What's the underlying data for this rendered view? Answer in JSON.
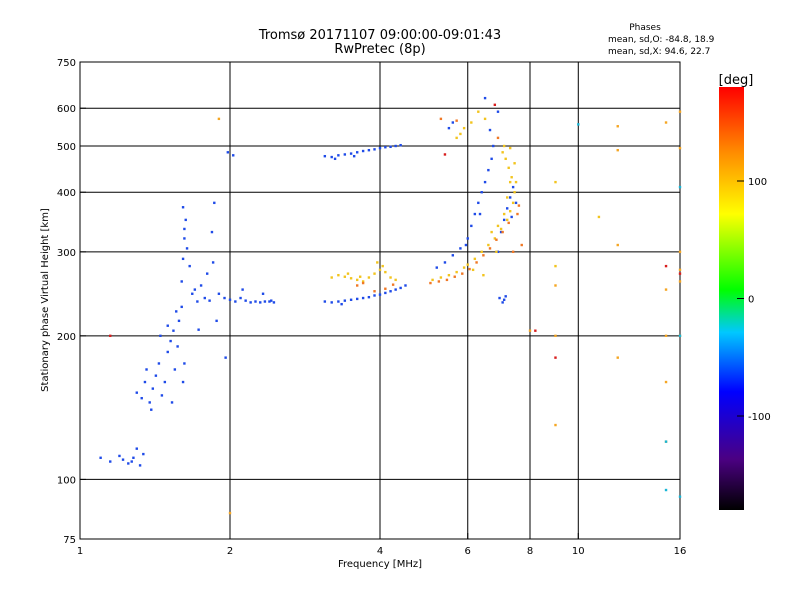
{
  "chart_data": {
    "type": "scatter",
    "title": "Tromsø 20171107 09:00:00-09:01:43",
    "subtitle": "RwPretec (8p)",
    "stats": {
      "heading": "Phases",
      "line_o": "mean, sd,O: -84.8, 18.9",
      "line_x": "mean, sd,X:  94.6, 22.7"
    },
    "xlabel": "Frequency [MHz]",
    "ylabel": "Stationary phase Virtual Height [km]",
    "x_scale": "log",
    "y_scale": "log",
    "xlim": [
      1,
      16
    ],
    "ylim": [
      75,
      750
    ],
    "x_ticks": [
      1,
      2,
      4,
      6,
      8,
      10,
      16
    ],
    "x_tick_labels": [
      "1",
      "2",
      "4",
      "6",
      "8",
      "10",
      "16"
    ],
    "y_ticks": [
      75,
      100,
      200,
      300,
      400,
      500,
      600,
      750
    ],
    "y_tick_labels": [
      "75",
      "100",
      "200",
      "300",
      "400",
      "500",
      "600",
      "750"
    ],
    "x_grid": [
      2,
      4,
      6,
      8,
      10
    ],
    "y_grid": [
      100,
      200,
      300,
      400,
      500,
      600
    ],
    "colorbar": {
      "label": "[deg]",
      "range": [
        -180,
        180
      ],
      "ticks": [
        100,
        0,
        -100
      ],
      "tick_labels": [
        "100",
        "0",
        "-100"
      ]
    },
    "series": [
      {
        "points": [
          [
            1.2,
            112
          ],
          [
            1.22,
            110
          ],
          [
            1.25,
            108
          ],
          [
            1.28,
            111
          ],
          [
            1.3,
            116
          ],
          [
            1.27,
            109
          ],
          [
            1.32,
            107
          ],
          [
            1.34,
            113
          ],
          [
            1.3,
            152
          ],
          [
            1.33,
            148
          ],
          [
            1.35,
            160
          ],
          [
            1.36,
            170
          ],
          [
            1.38,
            145
          ],
          [
            1.4,
            155
          ],
          [
            1.42,
            165
          ],
          [
            1.44,
            175
          ],
          [
            1.46,
            150
          ],
          [
            1.48,
            160
          ],
          [
            1.5,
            185
          ],
          [
            1.52,
            195
          ],
          [
            1.54,
            205
          ],
          [
            1.55,
            170
          ],
          [
            1.57,
            190
          ],
          [
            1.58,
            215
          ],
          [
            1.6,
            230
          ],
          [
            1.62,
            175
          ],
          [
            1.45,
            200
          ],
          [
            1.5,
            210
          ],
          [
            1.56,
            225
          ],
          [
            1.61,
            160
          ],
          [
            1.39,
            140
          ],
          [
            1.53,
            145
          ],
          [
            1.6,
            260
          ],
          [
            1.61,
            290
          ],
          [
            1.62,
            320
          ],
          [
            1.63,
            350
          ],
          [
            1.61,
            372
          ],
          [
            1.62,
            335
          ],
          [
            1.64,
            305
          ],
          [
            1.66,
            280
          ],
          [
            1.7,
            250
          ],
          [
            1.75,
            255
          ],
          [
            1.8,
            270
          ],
          [
            1.85,
            285
          ],
          [
            1.84,
            330
          ],
          [
            1.86,
            380
          ],
          [
            1.68,
            245
          ],
          [
            1.78,
            240
          ],
          [
            1.9,
            245
          ],
          [
            1.95,
            240
          ],
          [
            2.0,
            238
          ],
          [
            2.05,
            236
          ],
          [
            2.1,
            240
          ],
          [
            2.15,
            237
          ],
          [
            2.2,
            235
          ],
          [
            2.25,
            236
          ],
          [
            2.3,
            235
          ],
          [
            2.35,
            236
          ],
          [
            2.4,
            236
          ],
          [
            2.45,
            235
          ],
          [
            1.72,
            236
          ],
          [
            1.82,
            237
          ],
          [
            2.12,
            250
          ],
          [
            2.33,
            245
          ],
          [
            1.98,
            485
          ],
          [
            2.03,
            478
          ],
          [
            1.88,
            215
          ],
          [
            1.96,
            180
          ],
          [
            2.42,
            237
          ],
          [
            1.1,
            111
          ],
          [
            1.15,
            109
          ],
          [
            1.73,
            206
          ],
          [
            3.1,
            236
          ],
          [
            3.2,
            235
          ],
          [
            3.3,
            236
          ],
          [
            3.4,
            237
          ],
          [
            3.5,
            238
          ],
          [
            3.6,
            239
          ],
          [
            3.7,
            240
          ],
          [
            3.8,
            241
          ],
          [
            3.9,
            243
          ],
          [
            4.0,
            244
          ],
          [
            4.1,
            246
          ],
          [
            4.2,
            248
          ],
          [
            4.3,
            250
          ],
          [
            4.4,
            252
          ],
          [
            4.5,
            255
          ],
          [
            3.35,
            233
          ],
          [
            3.1,
            476
          ],
          [
            3.2,
            474
          ],
          [
            3.3,
            478
          ],
          [
            3.4,
            480
          ],
          [
            3.5,
            482
          ],
          [
            3.6,
            485
          ],
          [
            3.7,
            488
          ],
          [
            3.8,
            490
          ],
          [
            3.9,
            492
          ],
          [
            4.0,
            495
          ],
          [
            4.1,
            497
          ],
          [
            4.2,
            498
          ],
          [
            4.3,
            500
          ],
          [
            4.4,
            502
          ],
          [
            3.25,
            470
          ],
          [
            3.55,
            476
          ],
          [
            5.2,
            278
          ],
          [
            5.4,
            285
          ],
          [
            5.6,
            295
          ],
          [
            5.8,
            305
          ],
          [
            6.0,
            320
          ],
          [
            6.1,
            340
          ],
          [
            6.2,
            360
          ],
          [
            6.3,
            380
          ],
          [
            6.4,
            400
          ],
          [
            6.5,
            420
          ],
          [
            6.6,
            445
          ],
          [
            6.7,
            470
          ],
          [
            6.75,
            500
          ],
          [
            6.65,
            540
          ],
          [
            5.95,
            310
          ],
          [
            6.35,
            360
          ],
          [
            6.9,
            300
          ],
          [
            7.0,
            330
          ],
          [
            7.1,
            350
          ],
          [
            7.2,
            370
          ],
          [
            7.3,
            390
          ],
          [
            7.4,
            410
          ],
          [
            7.5,
            380
          ],
          [
            7.35,
            355
          ],
          [
            6.5,
            630
          ],
          [
            6.9,
            590
          ],
          [
            5.6,
            560
          ],
          [
            5.5,
            545
          ],
          [
            6.95,
            240
          ],
          [
            7.05,
            235
          ],
          [
            7.1,
            238
          ],
          [
            7.15,
            242
          ]
        ]
      },
      {
        "points": [
          [
            3.2,
            265
          ],
          [
            3.3,
            268
          ],
          [
            3.4,
            266
          ],
          [
            3.5,
            264
          ],
          [
            3.6,
            262
          ],
          [
            3.7,
            260
          ],
          [
            3.8,
            265
          ],
          [
            3.9,
            270
          ],
          [
            4.0,
            275
          ],
          [
            4.1,
            272
          ],
          [
            4.2,
            265
          ],
          [
            4.3,
            262
          ],
          [
            3.45,
            270
          ],
          [
            3.65,
            266
          ],
          [
            3.95,
            285
          ],
          [
            4.05,
            280
          ],
          [
            5.1,
            262
          ],
          [
            5.3,
            265
          ],
          [
            5.5,
            268
          ],
          [
            5.7,
            272
          ],
          [
            5.9,
            278
          ],
          [
            6.0,
            282
          ],
          [
            6.2,
            290
          ],
          [
            6.4,
            300
          ],
          [
            6.6,
            310
          ],
          [
            6.8,
            320
          ],
          [
            7.0,
            335
          ],
          [
            7.2,
            350
          ],
          [
            7.3,
            365
          ],
          [
            7.4,
            380
          ],
          [
            7.45,
            400
          ],
          [
            7.5,
            420
          ],
          [
            6.7,
            330
          ],
          [
            6.9,
            340
          ],
          [
            7.1,
            360
          ],
          [
            7.2,
            390
          ],
          [
            7.3,
            420
          ],
          [
            7.25,
            450
          ],
          [
            7.15,
            470
          ],
          [
            7.05,
            485
          ],
          [
            7.35,
            430
          ],
          [
            7.45,
            460
          ],
          [
            7.3,
            495
          ],
          [
            7.1,
            500
          ],
          [
            6.3,
            590
          ],
          [
            6.1,
            560
          ],
          [
            5.9,
            545
          ],
          [
            5.8,
            530
          ],
          [
            5.7,
            520
          ],
          [
            6.5,
            570
          ],
          [
            9.0,
            420
          ],
          [
            9.0,
            280
          ],
          [
            11.0,
            355
          ],
          [
            6.15,
            275
          ],
          [
            6.45,
            268
          ],
          [
            6.85,
            300
          ]
        ]
      },
      {
        "points": [
          [
            3.6,
            255
          ],
          [
            3.7,
            258
          ],
          [
            3.9,
            248
          ],
          [
            4.1,
            251
          ],
          [
            4.25,
            256
          ],
          [
            5.05,
            258
          ],
          [
            5.25,
            260
          ],
          [
            5.45,
            262
          ],
          [
            5.65,
            266
          ],
          [
            5.85,
            270
          ],
          [
            6.05,
            276
          ],
          [
            6.25,
            285
          ],
          [
            6.45,
            295
          ],
          [
            6.65,
            305
          ],
          [
            6.85,
            318
          ],
          [
            7.05,
            330
          ],
          [
            7.25,
            345
          ],
          [
            7.55,
            360
          ],
          [
            7.6,
            375
          ],
          [
            7.7,
            310
          ],
          [
            5.3,
            570
          ],
          [
            5.7,
            565
          ],
          [
            6.9,
            520
          ],
          [
            7.4,
            300
          ]
        ]
      },
      {
        "points": [
          [
            1.9,
            570
          ],
          [
            2.0,
            85
          ],
          [
            9.0,
            255
          ],
          [
            12.0,
            550
          ],
          [
            12.0,
            490
          ],
          [
            12.0,
            310
          ],
          [
            15.0,
            560
          ],
          [
            15.0,
            250
          ],
          [
            15.0,
            200
          ],
          [
            15.0,
            160
          ],
          [
            15.0,
            120
          ],
          [
            16.0,
            275
          ],
          [
            16.0,
            260
          ],
          [
            16.0,
            300
          ],
          [
            16.0,
            200
          ],
          [
            12.0,
            180
          ],
          [
            9.0,
            200
          ],
          [
            9.0,
            130
          ],
          [
            8.0,
            205
          ],
          [
            16.0,
            590
          ],
          [
            16.0,
            495
          ]
        ]
      },
      {
        "points": [
          [
            5.4,
            480
          ],
          [
            6.8,
            610
          ],
          [
            8.2,
            205
          ],
          [
            9.0,
            180
          ],
          [
            15.0,
            280
          ],
          [
            16.0,
            270
          ],
          [
            1.15,
            200
          ]
        ]
      },
      {
        "points": [
          [
            10.0,
            555
          ],
          [
            16.0,
            200
          ],
          [
            16.0,
            92
          ],
          [
            15.0,
            95
          ],
          [
            16.0,
            410
          ],
          [
            15.0,
            120
          ]
        ]
      }
    ]
  },
  "colors": {
    "series": [
      "#1f4be8",
      "#f2c41e",
      "#f07826",
      "#f5a623",
      "#d81e1e",
      "#18b6d6"
    ]
  }
}
